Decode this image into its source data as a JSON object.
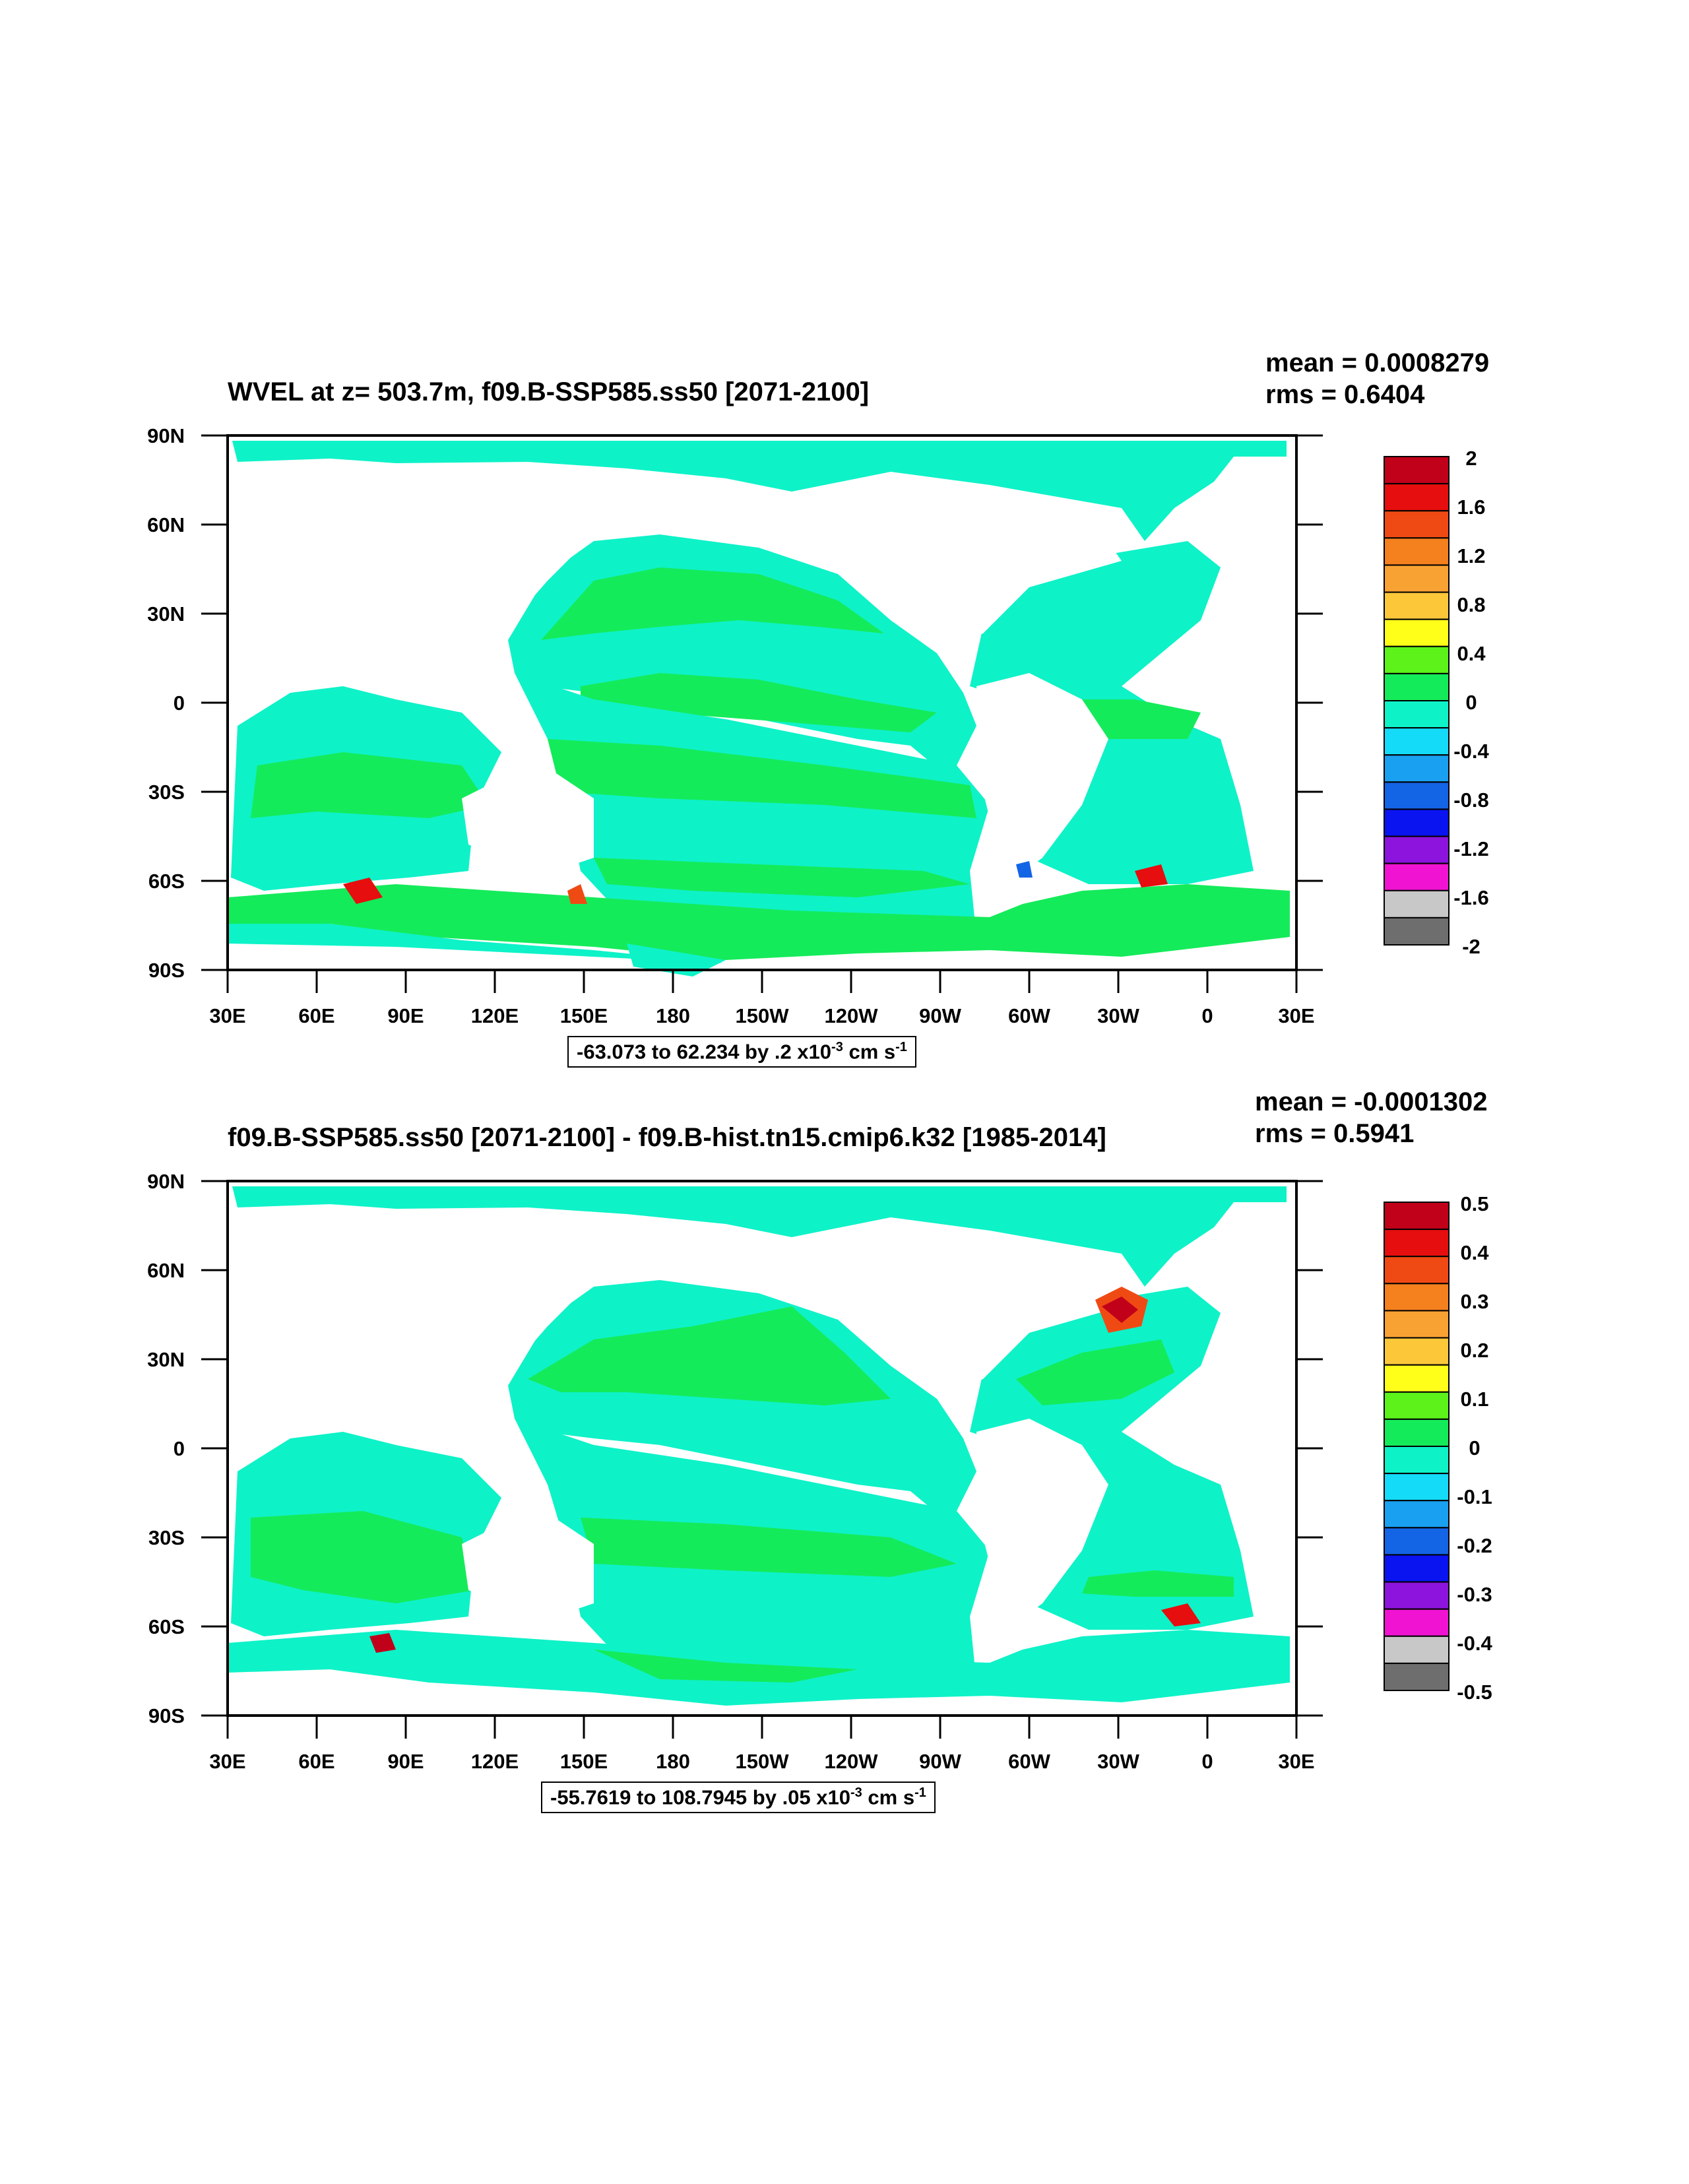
{
  "panels": [
    {
      "title": "WVEL at z= 503.7m, f09.B-SSP585.ss50 [2071-2100]",
      "mean": "mean = 0.0008279",
      "rms": "rms = 0.6404",
      "range_text": "-63.073 to 62.234 by .2 x10",
      "range_exp": "-3",
      "range_unit": " cm s",
      "range_unit_exp": "-1",
      "colorbar_labels": [
        "2",
        "1.6",
        "1.2",
        "0.8",
        "0.4",
        "0",
        "-0.4",
        "-0.8",
        "-1.2",
        "-1.6",
        "-2"
      ]
    },
    {
      "title": "f09.B-SSP585.ss50 [2071-2100] - f09.B-hist.tn15.cmip6.k32 [1985-2014]",
      "mean": "mean = -0.0001302",
      "rms": "rms = 0.5941",
      "range_text": "-55.7619 to 108.7945 by .05 x10",
      "range_exp": "-3",
      "range_unit": " cm s",
      "range_unit_exp": "-1",
      "colorbar_labels": [
        "0.5",
        "0.4",
        "0.3",
        "0.2",
        "0.1",
        "0",
        "-0.1",
        "-0.2",
        "-0.3",
        "-0.4",
        "-0.5"
      ]
    }
  ],
  "axes": {
    "lat_labels": [
      "90N",
      "60N",
      "30N",
      "0",
      "30S",
      "60S",
      "90S"
    ],
    "lon_labels": [
      "30E",
      "60E",
      "90E",
      "120E",
      "150E",
      "180",
      "150W",
      "120W",
      "90W",
      "60W",
      "30W",
      "0",
      "30E"
    ]
  },
  "colorbar_colors": [
    "#c1001a",
    "#e60e0e",
    "#f04a14",
    "#f4801e",
    "#f9a234",
    "#fcc83a",
    "#ffff1a",
    "#5cf21a",
    "#14eb5a",
    "#0ef2c8",
    "#14dcf8",
    "#1aa0f0",
    "#1464e6",
    "#0a14f0",
    "#8c14dc",
    "#f014d2",
    "#c8c8c8",
    "#6e6e6e"
  ],
  "colors": {
    "ocean_base": "#0ef2c8",
    "ocean_light": "#14dcf8",
    "ocean_positive": "#14eb5a",
    "land": "#ffffff"
  }
}
